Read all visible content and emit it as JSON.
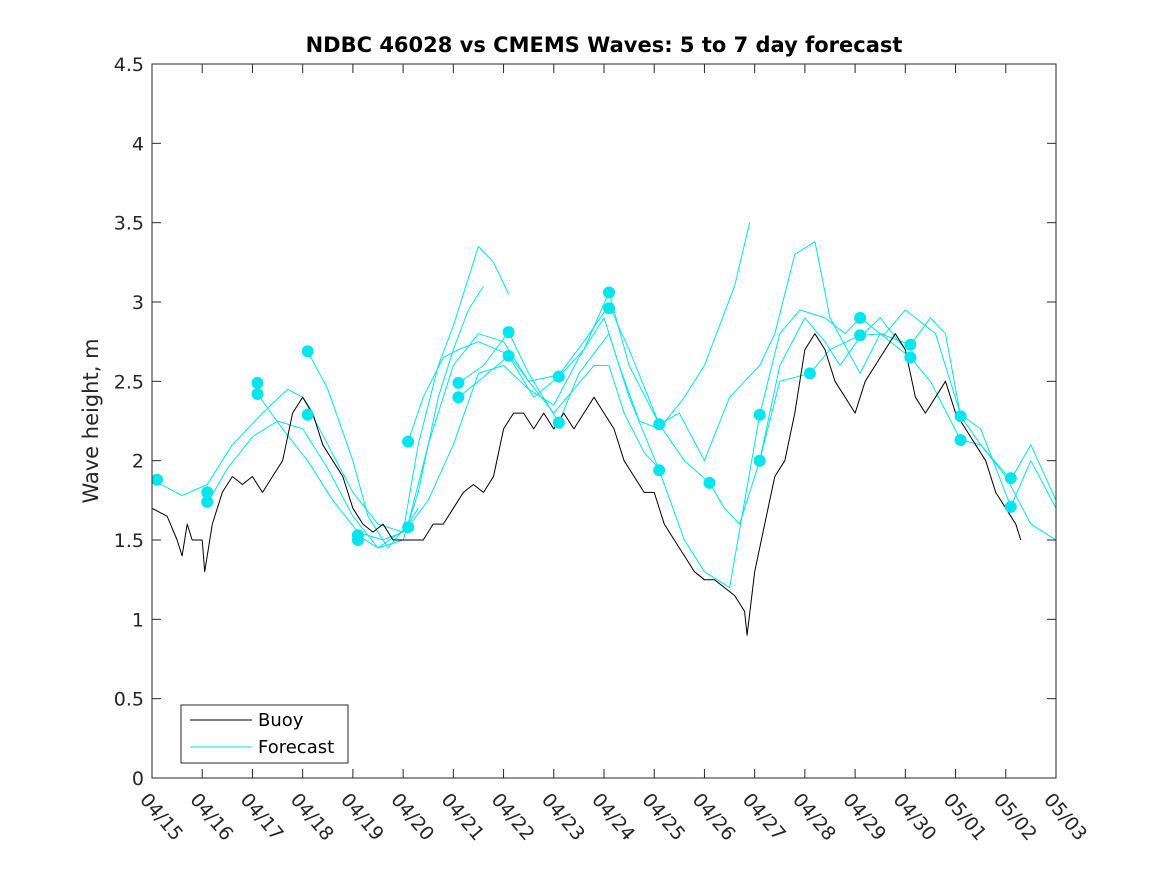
{
  "chart_data": {
    "type": "line",
    "title": "NDBC 46028 vs CMEMS Waves: 5 to 7 day forecast",
    "xlabel": "",
    "ylabel": "Wave height, m",
    "xlim": [
      "04/15",
      "05/03"
    ],
    "ylim": [
      0,
      4.5
    ],
    "x_ticks": [
      "04/15",
      "04/16",
      "04/17",
      "04/18",
      "04/19",
      "04/20",
      "04/21",
      "04/22",
      "04/23",
      "04/24",
      "04/25",
      "04/26",
      "04/27",
      "04/28",
      "04/29",
      "04/30",
      "05/01",
      "05/02",
      "05/03"
    ],
    "y_ticks": [
      "0",
      "0.5",
      "1",
      "1.5",
      "2",
      "2.5",
      "3",
      "3.5",
      "4",
      "4.5"
    ],
    "grid": false,
    "legend": {
      "position": "bottom-left",
      "entries": [
        {
          "label": "Buoy",
          "color": "#000000"
        },
        {
          "label": "Forecast",
          "color": "#00e5ee"
        }
      ]
    },
    "colors": {
      "buoy": "#000000",
      "forecast": "#00e5ee",
      "axes": "#262626"
    },
    "series": [
      {
        "name": "Buoy",
        "color": "#000000",
        "points": [
          [
            0.0,
            1.7
          ],
          [
            0.3,
            1.65
          ],
          [
            0.5,
            1.5
          ],
          [
            0.6,
            1.4
          ],
          [
            0.7,
            1.6
          ],
          [
            0.8,
            1.5
          ],
          [
            1.0,
            1.5
          ],
          [
            1.05,
            1.3
          ],
          [
            1.2,
            1.6
          ],
          [
            1.4,
            1.8
          ],
          [
            1.6,
            1.9
          ],
          [
            1.8,
            1.85
          ],
          [
            2.0,
            1.9
          ],
          [
            2.2,
            1.8
          ],
          [
            2.4,
            1.9
          ],
          [
            2.6,
            2.0
          ],
          [
            2.8,
            2.3
          ],
          [
            3.0,
            2.4
          ],
          [
            3.2,
            2.3
          ],
          [
            3.4,
            2.1
          ],
          [
            3.6,
            2.0
          ],
          [
            3.8,
            1.9
          ],
          [
            4.0,
            1.7
          ],
          [
            4.2,
            1.6
          ],
          [
            4.4,
            1.55
          ],
          [
            4.6,
            1.6
          ],
          [
            4.8,
            1.5
          ],
          [
            5.0,
            1.5
          ],
          [
            5.2,
            1.5
          ],
          [
            5.4,
            1.5
          ],
          [
            5.6,
            1.6
          ],
          [
            5.8,
            1.6
          ],
          [
            6.0,
            1.7
          ],
          [
            6.2,
            1.8
          ],
          [
            6.4,
            1.85
          ],
          [
            6.6,
            1.8
          ],
          [
            6.8,
            1.9
          ],
          [
            7.0,
            2.2
          ],
          [
            7.2,
            2.3
          ],
          [
            7.4,
            2.3
          ],
          [
            7.6,
            2.2
          ],
          [
            7.8,
            2.3
          ],
          [
            8.0,
            2.2
          ],
          [
            8.2,
            2.3
          ],
          [
            8.4,
            2.2
          ],
          [
            8.6,
            2.3
          ],
          [
            8.8,
            2.4
          ],
          [
            9.0,
            2.3
          ],
          [
            9.2,
            2.2
          ],
          [
            9.4,
            2.0
          ],
          [
            9.6,
            1.9
          ],
          [
            9.8,
            1.8
          ],
          [
            10.0,
            1.8
          ],
          [
            10.2,
            1.6
          ],
          [
            10.4,
            1.5
          ],
          [
            10.6,
            1.4
          ],
          [
            10.8,
            1.3
          ],
          [
            11.0,
            1.25
          ],
          [
            11.2,
            1.25
          ],
          [
            11.4,
            1.2
          ],
          [
            11.6,
            1.15
          ],
          [
            11.8,
            1.05
          ],
          [
            11.85,
            0.9
          ],
          [
            12.0,
            1.3
          ],
          [
            12.2,
            1.6
          ],
          [
            12.4,
            1.9
          ],
          [
            12.6,
            2.0
          ],
          [
            12.8,
            2.3
          ],
          [
            13.0,
            2.7
          ],
          [
            13.2,
            2.8
          ],
          [
            13.4,
            2.7
          ],
          [
            13.6,
            2.5
          ],
          [
            13.8,
            2.4
          ],
          [
            14.0,
            2.3
          ],
          [
            14.2,
            2.5
          ],
          [
            14.4,
            2.6
          ],
          [
            14.6,
            2.7
          ],
          [
            14.8,
            2.8
          ],
          [
            15.0,
            2.7
          ],
          [
            15.2,
            2.4
          ],
          [
            15.4,
            2.3
          ],
          [
            15.6,
            2.4
          ],
          [
            15.8,
            2.5
          ],
          [
            16.0,
            2.3
          ],
          [
            16.2,
            2.2
          ],
          [
            16.4,
            2.1
          ],
          [
            16.6,
            2.0
          ],
          [
            16.8,
            1.8
          ],
          [
            17.0,
            1.7
          ],
          [
            17.2,
            1.6
          ],
          [
            17.3,
            1.5
          ]
        ]
      },
      {
        "name": "Forecast 1",
        "color": "#00e5ee",
        "points": [
          [
            0.0,
            1.88
          ],
          [
            0.6,
            1.78
          ],
          [
            1.1,
            1.85
          ],
          [
            1.6,
            2.1
          ],
          [
            2.2,
            2.3
          ],
          [
            2.7,
            2.45
          ],
          [
            3.0,
            2.4
          ],
          [
            3.5,
            2.1
          ],
          [
            4.0,
            1.8
          ],
          [
            4.5,
            1.6
          ],
          [
            5.0,
            1.55
          ],
          [
            5.3,
            1.7
          ]
        ]
      },
      {
        "name": "Forecast 2",
        "color": "#00e5ee",
        "points": [
          [
            1.1,
            1.73
          ],
          [
            1.5,
            1.95
          ],
          [
            2.0,
            2.15
          ],
          [
            2.5,
            2.25
          ],
          [
            3.0,
            2.2
          ],
          [
            3.5,
            1.95
          ],
          [
            4.0,
            1.65
          ],
          [
            4.5,
            1.45
          ],
          [
            5.0,
            1.5
          ],
          [
            5.3,
            1.8
          ],
          [
            5.7,
            2.4
          ],
          [
            6.0,
            2.7
          ],
          [
            6.3,
            2.95
          ],
          [
            6.6,
            3.1
          ]
        ]
      },
      {
        "name": "Forecast 3",
        "color": "#00e5ee",
        "points": [
          [
            2.1,
            2.42
          ],
          [
            2.6,
            2.2
          ],
          [
            3.1,
            2.0
          ],
          [
            3.6,
            1.75
          ],
          [
            4.1,
            1.55
          ],
          [
            4.6,
            1.5
          ],
          [
            5.0,
            1.55
          ],
          [
            5.3,
            2.1
          ],
          [
            5.7,
            2.6
          ],
          [
            6.0,
            2.85
          ],
          [
            6.5,
            3.35
          ],
          [
            6.8,
            3.25
          ],
          [
            7.1,
            3.05
          ]
        ]
      },
      {
        "name": "Forecast 4",
        "color": "#00e5ee",
        "points": [
          [
            3.1,
            2.69
          ],
          [
            3.5,
            2.45
          ],
          [
            4.0,
            2.0
          ],
          [
            4.3,
            1.65
          ],
          [
            4.7,
            1.45
          ],
          [
            5.1,
            1.6
          ],
          [
            5.5,
            2.1
          ],
          [
            6.0,
            2.6
          ],
          [
            6.5,
            2.8
          ],
          [
            7.0,
            2.75
          ],
          [
            7.5,
            2.5
          ],
          [
            8.0,
            2.3
          ],
          [
            8.4,
            2.45
          ],
          [
            8.8,
            2.6
          ],
          [
            9.1,
            2.6
          ],
          [
            9.4,
            2.3
          ],
          [
            9.8,
            2.05
          ],
          [
            10.1,
            1.95
          ]
        ]
      },
      {
        "name": "Forecast 5",
        "color": "#00e5ee",
        "points": [
          [
            4.1,
            1.53
          ],
          [
            4.5,
            1.45
          ],
          [
            5.1,
            1.58
          ],
          [
            5.5,
            1.75
          ],
          [
            6.0,
            2.1
          ],
          [
            6.5,
            2.55
          ],
          [
            7.0,
            2.6
          ],
          [
            7.5,
            2.45
          ],
          [
            8.0,
            2.35
          ],
          [
            8.5,
            2.65
          ],
          [
            9.0,
            2.9
          ],
          [
            9.3,
            2.6
          ],
          [
            9.7,
            2.25
          ],
          [
            10.1,
            2.2
          ],
          [
            10.6,
            2.4
          ],
          [
            11.0,
            2.6
          ],
          [
            11.3,
            2.85
          ],
          [
            11.6,
            3.1
          ],
          [
            11.9,
            3.5
          ]
        ]
      },
      {
        "name": "Forecast 6",
        "color": "#00e5ee",
        "points": [
          [
            5.1,
            2.12
          ],
          [
            5.4,
            2.4
          ],
          [
            5.8,
            2.65
          ],
          [
            6.1,
            2.7
          ],
          [
            6.5,
            2.75
          ],
          [
            7.1,
            2.67
          ],
          [
            7.5,
            2.5
          ],
          [
            8.1,
            2.54
          ],
          [
            8.6,
            2.75
          ],
          [
            9.1,
            2.98
          ],
          [
            9.5,
            2.7
          ],
          [
            10.1,
            2.23
          ],
          [
            10.6,
            2.0
          ],
          [
            11.1,
            1.86
          ],
          [
            11.4,
            1.7
          ],
          [
            11.7,
            1.6
          ],
          [
            12.1,
            2.0
          ],
          [
            12.5,
            2.6
          ],
          [
            13.0,
            2.9
          ],
          [
            13.4,
            2.75
          ],
          [
            13.7,
            2.6
          ],
          [
            14.1,
            2.78
          ],
          [
            14.5,
            2.9
          ],
          [
            15.0,
            2.7
          ]
        ]
      },
      {
        "name": "Forecast 7",
        "color": "#00e5ee",
        "points": [
          [
            6.1,
            2.49
          ],
          [
            6.6,
            2.6
          ],
          [
            7.1,
            2.81
          ],
          [
            7.5,
            2.55
          ],
          [
            8.1,
            2.24
          ],
          [
            8.5,
            2.55
          ],
          [
            9.1,
            2.8
          ],
          [
            9.5,
            2.4
          ],
          [
            10.1,
            1.94
          ],
          [
            10.6,
            1.5
          ],
          [
            11.0,
            1.3
          ],
          [
            11.5,
            1.2
          ],
          [
            12.1,
            2.29
          ],
          [
            12.5,
            2.8
          ],
          [
            12.9,
            2.95
          ],
          [
            13.4,
            2.9
          ],
          [
            13.8,
            2.8
          ],
          [
            14.1,
            2.9
          ],
          [
            14.5,
            2.8
          ],
          [
            15.1,
            2.73
          ],
          [
            15.5,
            2.9
          ],
          [
            15.8,
            2.8
          ],
          [
            16.1,
            2.28
          ],
          [
            16.5,
            2.1
          ],
          [
            17.0,
            1.9
          ],
          [
            17.5,
            1.6
          ],
          [
            18.0,
            1.5
          ]
        ]
      },
      {
        "name": "Forecast 8",
        "color": "#00e5ee",
        "points": [
          [
            6.1,
            2.4
          ],
          [
            6.5,
            2.5
          ],
          [
            7.1,
            2.66
          ],
          [
            7.6,
            2.4
          ],
          [
            8.1,
            2.53
          ],
          [
            8.6,
            2.7
          ],
          [
            9.1,
            3.06
          ],
          [
            9.5,
            2.6
          ],
          [
            10.1,
            2.23
          ],
          [
            10.5,
            2.3
          ],
          [
            11.0,
            2.0
          ],
          [
            11.5,
            2.4
          ],
          [
            12.1,
            2.6
          ],
          [
            12.4,
            2.8
          ],
          [
            12.8,
            3.3
          ],
          [
            13.2,
            3.38
          ],
          [
            13.5,
            2.9
          ],
          [
            14.1,
            2.55
          ],
          [
            14.5,
            2.8
          ],
          [
            15.1,
            2.65
          ],
          [
            15.5,
            2.5
          ],
          [
            16.1,
            2.13
          ],
          [
            16.5,
            2.1
          ],
          [
            17.1,
            1.88
          ],
          [
            17.5,
            2.1
          ],
          [
            18.0,
            1.75
          ]
        ]
      },
      {
        "name": "Forecast 9",
        "color": "#00e5ee",
        "points": [
          [
            12.1,
            2.0
          ],
          [
            12.5,
            2.5
          ],
          [
            13.1,
            2.55
          ],
          [
            13.5,
            2.7
          ],
          [
            14.1,
            2.79
          ],
          [
            14.6,
            2.8
          ],
          [
            15.0,
            2.95
          ],
          [
            15.6,
            2.8
          ],
          [
            16.1,
            2.29
          ],
          [
            16.5,
            2.2
          ],
          [
            17.1,
            1.71
          ],
          [
            17.5,
            2.0
          ],
          [
            18.0,
            1.7
          ]
        ]
      }
    ],
    "markers": [
      [
        0.1,
        1.88
      ],
      [
        1.1,
        1.8
      ],
      [
        1.1,
        1.74
      ],
      [
        2.1,
        2.49
      ],
      [
        2.1,
        2.42
      ],
      [
        3.1,
        2.69
      ],
      [
        3.1,
        2.29
      ],
      [
        4.1,
        1.53
      ],
      [
        4.1,
        1.5
      ],
      [
        5.1,
        2.12
      ],
      [
        5.1,
        1.58
      ],
      [
        6.1,
        2.49
      ],
      [
        6.1,
        2.4
      ],
      [
        7.1,
        2.81
      ],
      [
        7.1,
        2.66
      ],
      [
        8.1,
        2.53
      ],
      [
        8.1,
        2.24
      ],
      [
        9.1,
        3.06
      ],
      [
        9.1,
        2.96
      ],
      [
        10.1,
        2.23
      ],
      [
        10.1,
        1.94
      ],
      [
        11.1,
        1.86
      ],
      [
        12.1,
        2.29
      ],
      [
        12.1,
        2.0
      ],
      [
        13.1,
        2.55
      ],
      [
        14.1,
        2.9
      ],
      [
        14.1,
        2.79
      ],
      [
        15.1,
        2.73
      ],
      [
        15.1,
        2.65
      ],
      [
        16.1,
        2.28
      ],
      [
        16.1,
        2.13
      ],
      [
        17.1,
        1.89
      ],
      [
        17.1,
        1.71
      ]
    ]
  }
}
